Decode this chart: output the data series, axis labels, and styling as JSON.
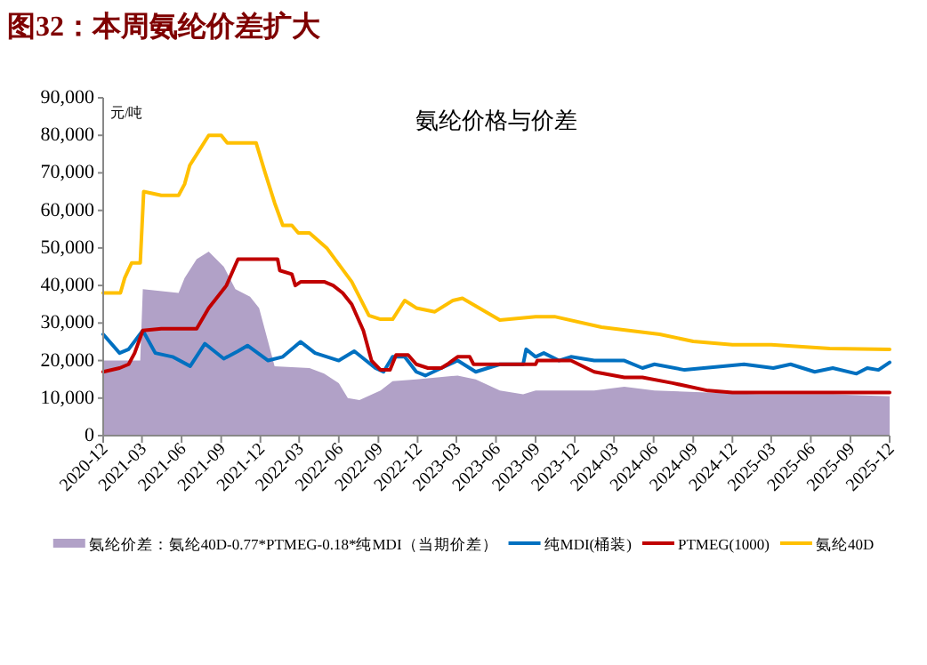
{
  "chart_data": {
    "type": "line",
    "title": "图32：本周氨纶价差扩大",
    "subtitle": "氨纶价格与价差",
    "ylabel": "元/吨",
    "xlim": [
      "2020-12",
      "2025-12"
    ],
    "xticks": [
      "2020-12",
      "2021-03",
      "2021-06",
      "2021-09",
      "2021-12",
      "2022-03",
      "2022-06",
      "2022-09",
      "2022-12",
      "2023-03",
      "2023-06",
      "2023-09",
      "2023-12",
      "2024-03",
      "2024-06",
      "2024-09",
      "2024-12",
      "2025-03",
      "2025-06",
      "2025-09",
      "2025-12"
    ],
    "ylim": [
      0,
      90000
    ],
    "yticks": [
      {
        "value": 0,
        "label": "0"
      },
      {
        "value": 10000,
        "label": "10,000"
      },
      {
        "value": 20000,
        "label": "20,000"
      },
      {
        "value": 30000,
        "label": "30,000"
      },
      {
        "value": 40000,
        "label": "40,000"
      },
      {
        "value": 50000,
        "label": "50,000"
      },
      {
        "value": 60000,
        "label": "60,000"
      },
      {
        "value": 70000,
        "label": "70,000"
      },
      {
        "value": 80000,
        "label": "80,000"
      },
      {
        "value": 90000,
        "label": "90,000"
      }
    ],
    "legend": "bottom",
    "grid": false,
    "series": [
      {
        "name": "氨纶价差：氨纶40D-0.77*PTMEG-0.18*纯MDI（当期价差）",
        "type": "area",
        "color": "#b1a1c7",
        "x": [
          "2020-12-01",
          "2021-02-25",
          "2021-03-03",
          "2021-05-25",
          "2021-06-08",
          "2021-07-06",
          "2021-08-03",
          "2021-09-07",
          "2021-10-04",
          "2021-11-07",
          "2021-11-28",
          "2021-12-19",
          "2022-01-03",
          "2022-03-25",
          "2022-04-28",
          "2022-06-01",
          "2022-06-22",
          "2022-07-19",
          "2022-09-06",
          "2022-10-04",
          "2022-11-28",
          "2023-03-04",
          "2023-04-15",
          "2023-06-10",
          "2023-08-03",
          "2023-09-01",
          "2024-01-15",
          "2024-03-25",
          "2024-06-03",
          "2024-10-05",
          "2025-02-01",
          "2025-07-22",
          "2025-12-01"
        ],
        "values": [
          20000,
          20000,
          39000,
          38000,
          42000,
          47000,
          49000,
          45000,
          39000,
          37000,
          34000,
          25000,
          18500,
          18000,
          16500,
          14000,
          10000,
          9500,
          12000,
          14500,
          15000,
          16000,
          15000,
          12000,
          11000,
          12000,
          12000,
          13000,
          12000,
          11500,
          11000,
          11000,
          10500
        ]
      },
      {
        "name": "纯MDI(桶装)",
        "color": "#0070c0",
        "x": [
          "2020-12-01",
          "2021-01-08",
          "2021-01-29",
          "2021-03-03",
          "2021-04-01",
          "2021-05-11",
          "2021-06-21",
          "2021-07-25",
          "2021-09-07",
          "2021-10-10",
          "2021-11-01",
          "2021-12-19",
          "2022-01-22",
          "2022-03-04",
          "2022-04-07",
          "2022-06-01",
          "2022-07-07",
          "2022-08-25",
          "2022-09-13",
          "2022-10-04",
          "2022-11-01",
          "2022-11-28",
          "2022-12-19",
          "2023-01-25",
          "2023-03-04",
          "2023-04-15",
          "2023-06-10",
          "2023-08-03",
          "2023-08-10",
          "2023-09-01",
          "2023-09-20",
          "2023-10-25",
          "2023-11-22",
          "2024-01-15",
          "2024-03-25",
          "2024-05-06",
          "2024-06-03",
          "2024-08-12",
          "2024-12-28",
          "2025-03-06",
          "2025-04-15",
          "2025-06-10",
          "2025-07-22",
          "2025-09-15",
          "2025-10-10",
          "2025-11-05",
          "2025-12-01"
        ],
        "values": [
          27000,
          22000,
          23000,
          28000,
          22000,
          21000,
          18500,
          24500,
          20500,
          22500,
          24000,
          20000,
          21000,
          25000,
          22000,
          20000,
          22500,
          18000,
          17000,
          21000,
          21000,
          17000,
          16000,
          18000,
          20000,
          17000,
          19000,
          19000,
          23000,
          21000,
          22000,
          20000,
          21000,
          20000,
          20000,
          18000,
          19000,
          17500,
          19000,
          18000,
          19000,
          17000,
          18000,
          16500,
          18000,
          17500,
          19500
        ]
      },
      {
        "name": "PTMEG(1000)",
        "color": "#c00000",
        "x": [
          "2020-12-01",
          "2021-01-08",
          "2021-01-29",
          "2021-02-12",
          "2021-03-03",
          "2021-04-15",
          "2021-07-06",
          "2021-08-03",
          "2021-09-13",
          "2021-10-10",
          "2022-01-10",
          "2022-01-15",
          "2022-02-12",
          "2022-02-20",
          "2022-03-05",
          "2022-04-28",
          "2022-05-19",
          "2022-06-10",
          "2022-07-01",
          "2022-07-28",
          "2022-08-16",
          "2022-09-06",
          "2022-09-28",
          "2022-10-12",
          "2022-11-09",
          "2022-11-28",
          "2022-12-25",
          "2023-01-25",
          "2023-02-08",
          "2023-03-04",
          "2023-04-01",
          "2023-04-10",
          "2023-09-01",
          "2023-09-05",
          "2023-11-22",
          "2024-01-15",
          "2024-03-25",
          "2024-05-06",
          "2024-07-15",
          "2024-10-05",
          "2024-12-01",
          "2025-12-01"
        ],
        "values": [
          17000,
          18000,
          19000,
          22000,
          28000,
          28500,
          28500,
          34000,
          40000,
          47000,
          47000,
          44000,
          43000,
          40000,
          41000,
          41000,
          40000,
          38000,
          35000,
          28000,
          20000,
          17500,
          17500,
          21500,
          21500,
          19000,
          18000,
          18000,
          19000,
          21000,
          21000,
          19000,
          19000,
          20000,
          20000,
          17000,
          15500,
          15500,
          14000,
          12000,
          11500,
          11500
        ]
      },
      {
        "name": "氨纶40D",
        "color": "#ffc000",
        "x": [
          "2020-12-01",
          "2021-01-10",
          "2021-01-20",
          "2021-02-05",
          "2021-02-25",
          "2021-03-05",
          "2021-04-15",
          "2021-05-25",
          "2021-06-08",
          "2021-06-20",
          "2021-07-12",
          "2021-08-03",
          "2021-09-01",
          "2021-09-15",
          "2021-11-21",
          "2021-12-12",
          "2022-01-03",
          "2022-01-22",
          "2022-02-12",
          "2022-02-27",
          "2022-03-25",
          "2022-05-04",
          "2022-07-01",
          "2022-08-10",
          "2022-09-06",
          "2022-10-04",
          "2022-11-01",
          "2022-11-28",
          "2023-01-10",
          "2023-02-21",
          "2023-03-15",
          "2023-06-10",
          "2023-09-01",
          "2023-10-15",
          "2024-02-01",
          "2024-06-15",
          "2024-09-01",
          "2024-12-01",
          "2025-03-01",
          "2025-07-15",
          "2025-12-01"
        ],
        "values": [
          38000,
          38000,
          42000,
          46000,
          46000,
          65000,
          64000,
          64000,
          67000,
          72000,
          76000,
          80000,
          80000,
          78000,
          78000,
          70000,
          62000,
          56000,
          56000,
          54000,
          54000,
          50000,
          41000,
          32000,
          31000,
          31000,
          36000,
          34000,
          33000,
          36000,
          36600,
          30800,
          31700,
          31700,
          28900,
          27000,
          25100,
          24200,
          24200,
          23200,
          23000
        ]
      }
    ]
  }
}
